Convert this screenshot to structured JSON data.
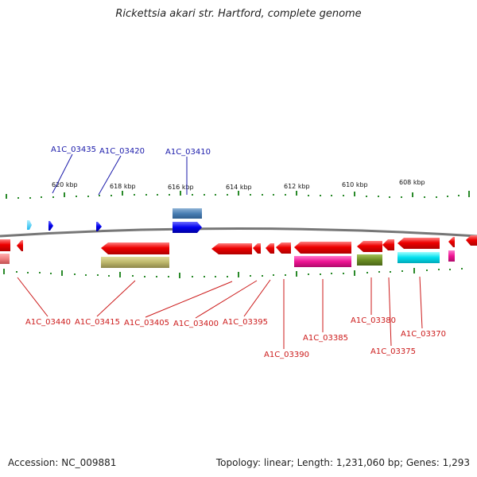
{
  "title": "Rickettsia akari str. Hartford, complete genome",
  "footer": {
    "accession": "Accession: NC_009881",
    "topology": "Topology: linear; Length: 1,231,060 bp; Genes: 1,293"
  },
  "scale": {
    "tick_labels": [
      "620 kbp",
      "618 kbp",
      "616 kbp",
      "614 kbp",
      "612 kbp",
      "610 kbp",
      "608 kbp"
    ]
  },
  "genes_top": [
    "A1C_03435",
    "A1C_03420",
    "A1C_03410"
  ],
  "genes_bottom": [
    "A1C_03440",
    "A1C_03415",
    "A1C_03405",
    "A1C_03400",
    "A1C_03395",
    "A1C_03390",
    "A1C_03385",
    "A1C_03380",
    "A1C_03375",
    "A1C_03370"
  ],
  "colors": {
    "backbone": "#7a7a7a",
    "tick": "#2a8a2a",
    "gene_red": "#e80000",
    "gene_blue": "#0000ee",
    "label_top": "#1a1aaa",
    "label_bottom": "#cc1a1a"
  }
}
